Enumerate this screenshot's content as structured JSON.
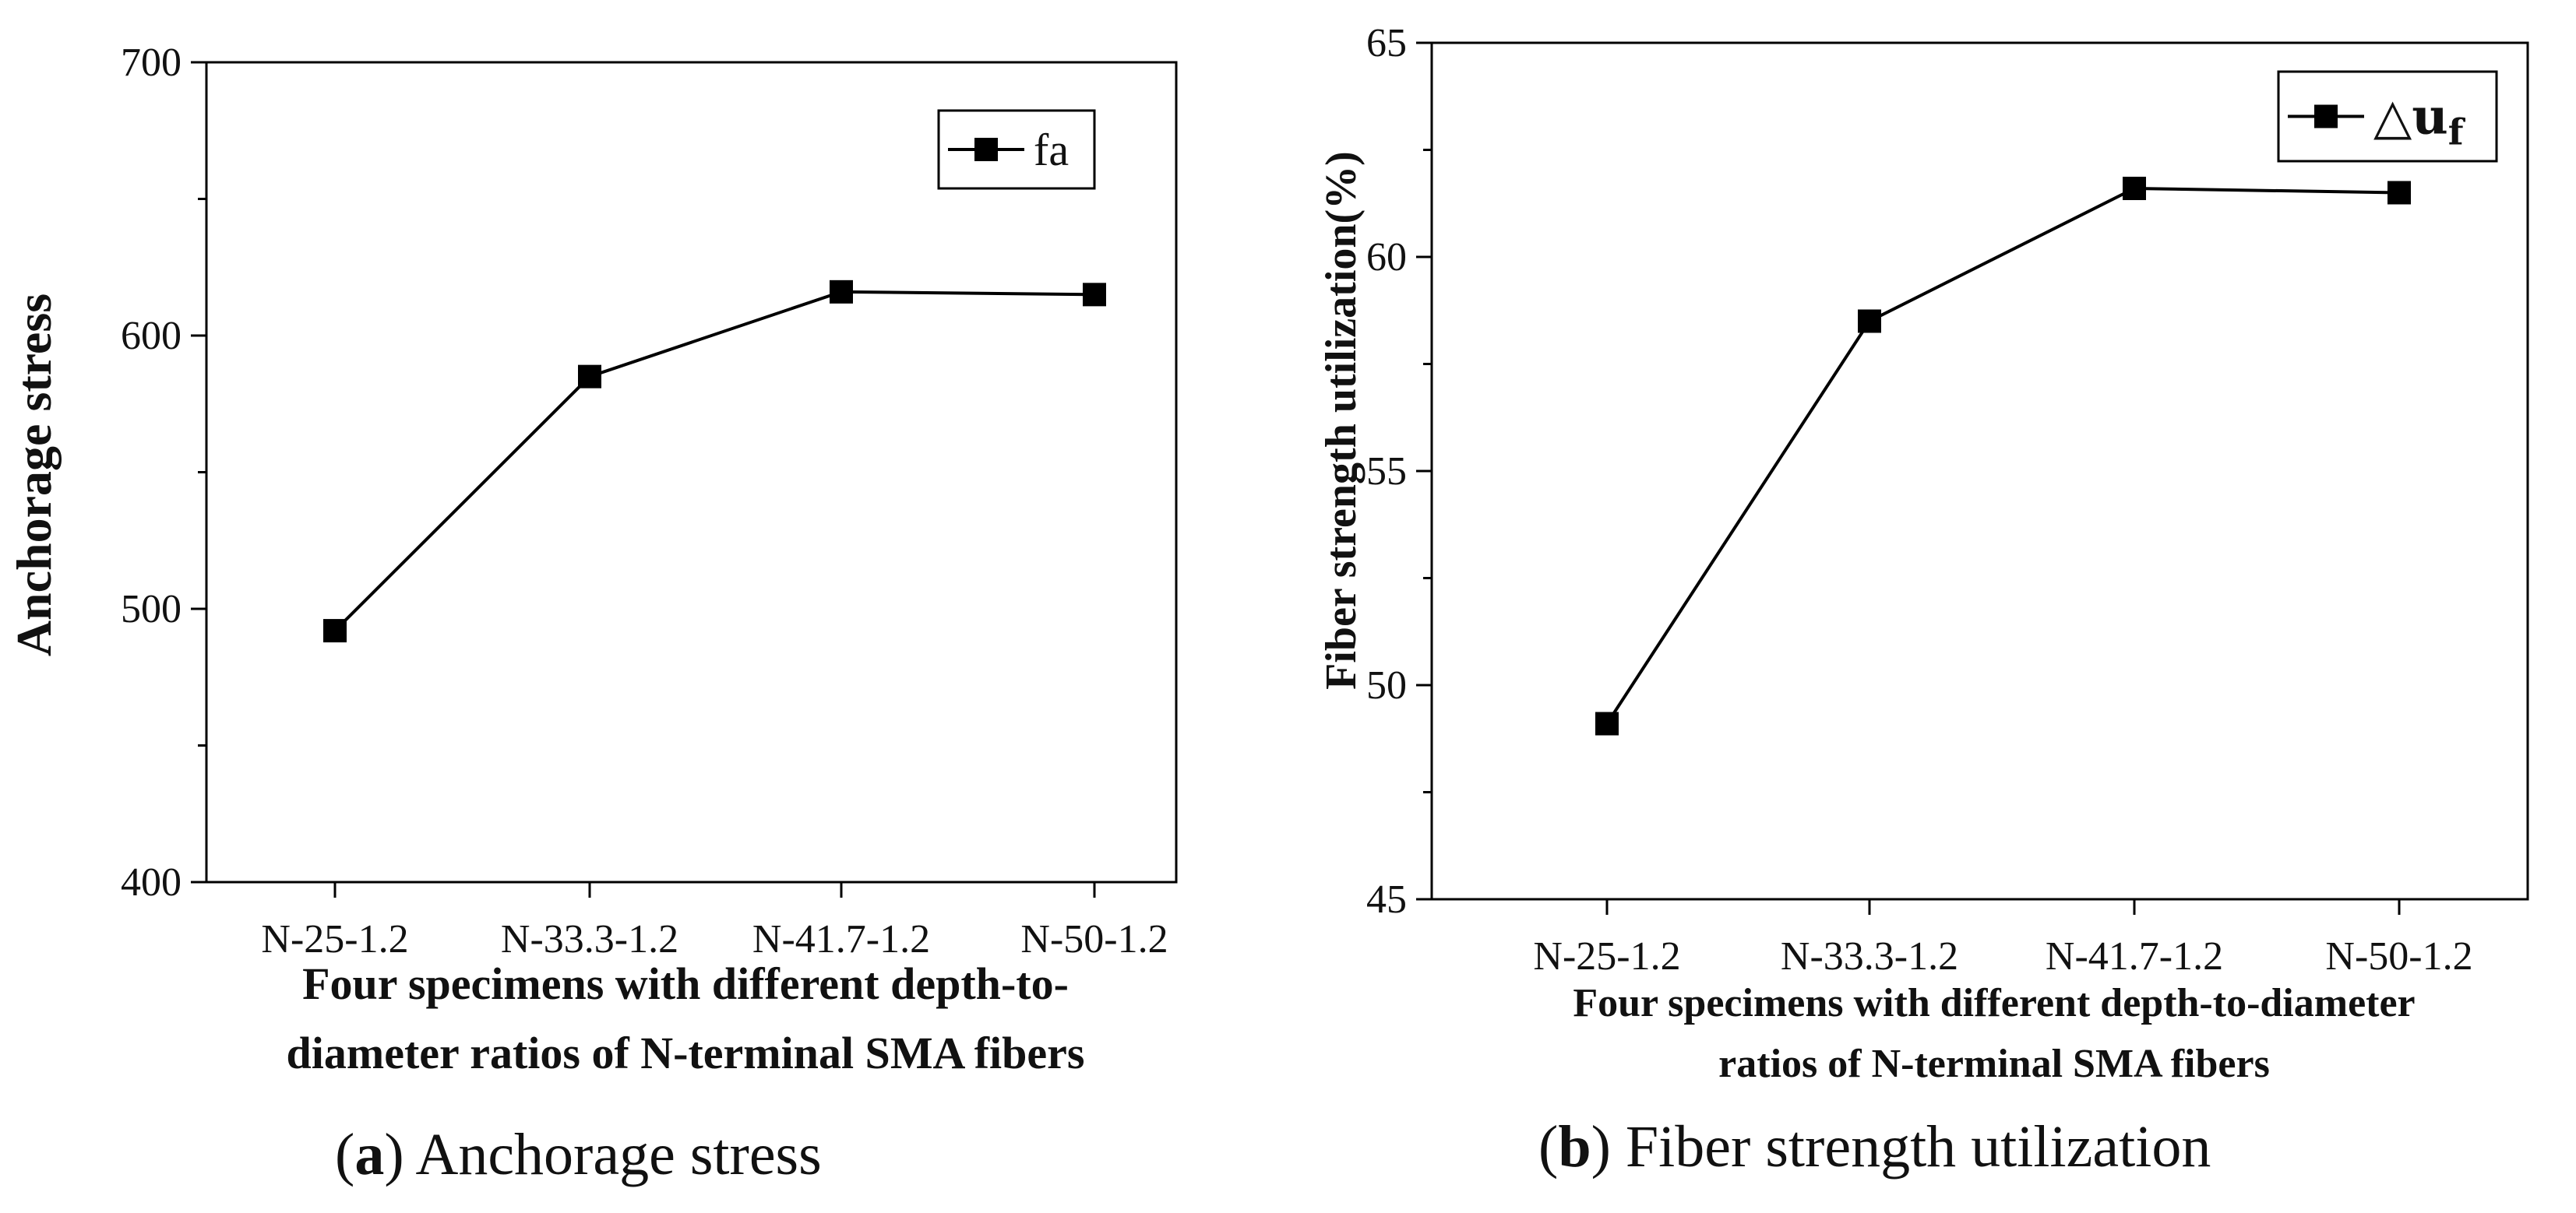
{
  "chart_data": [
    {
      "type": "line",
      "categories": [
        "N-25-1.2",
        "N-33.3-1.2",
        "N-41.7-1.2",
        "N-50-1.2"
      ],
      "series": [
        {
          "name": "fa",
          "values": [
            492,
            585,
            616,
            615
          ]
        }
      ],
      "ylabel": "Anchorage stress",
      "xlabel_lines": [
        "Four specimens with different depth-to-",
        "diameter ratios of N-terminal SMA fibers"
      ],
      "ylim": [
        400,
        700
      ],
      "yticks": [
        400,
        500,
        600,
        700
      ],
      "legend_position": "top-right",
      "grid": false,
      "caption": {
        "letter": "a",
        "text": "Anchorage stress"
      }
    },
    {
      "type": "line",
      "categories": [
        "N-25-1.2",
        "N-33.3-1.2",
        "N-41.7-1.2",
        "N-50-1.2"
      ],
      "series": [
        {
          "name": "△uf",
          "values": [
            49.1,
            58.5,
            61.6,
            61.5
          ]
        }
      ],
      "ylabel": "Fiber strength utilization(%)",
      "xlabel_lines": [
        "Four specimens with different depth-to-diameter",
        "ratios of N-terminal SMA fibers"
      ],
      "ylim": [
        45,
        65
      ],
      "yticks": [
        45,
        50,
        55,
        60,
        65
      ],
      "legend_position": "top-right",
      "grid": false,
      "caption": {
        "letter": "b",
        "text": "Fiber strength utilization"
      }
    }
  ],
  "colors": {
    "line": "#000000",
    "axis": "#000000",
    "text": "#111111"
  }
}
